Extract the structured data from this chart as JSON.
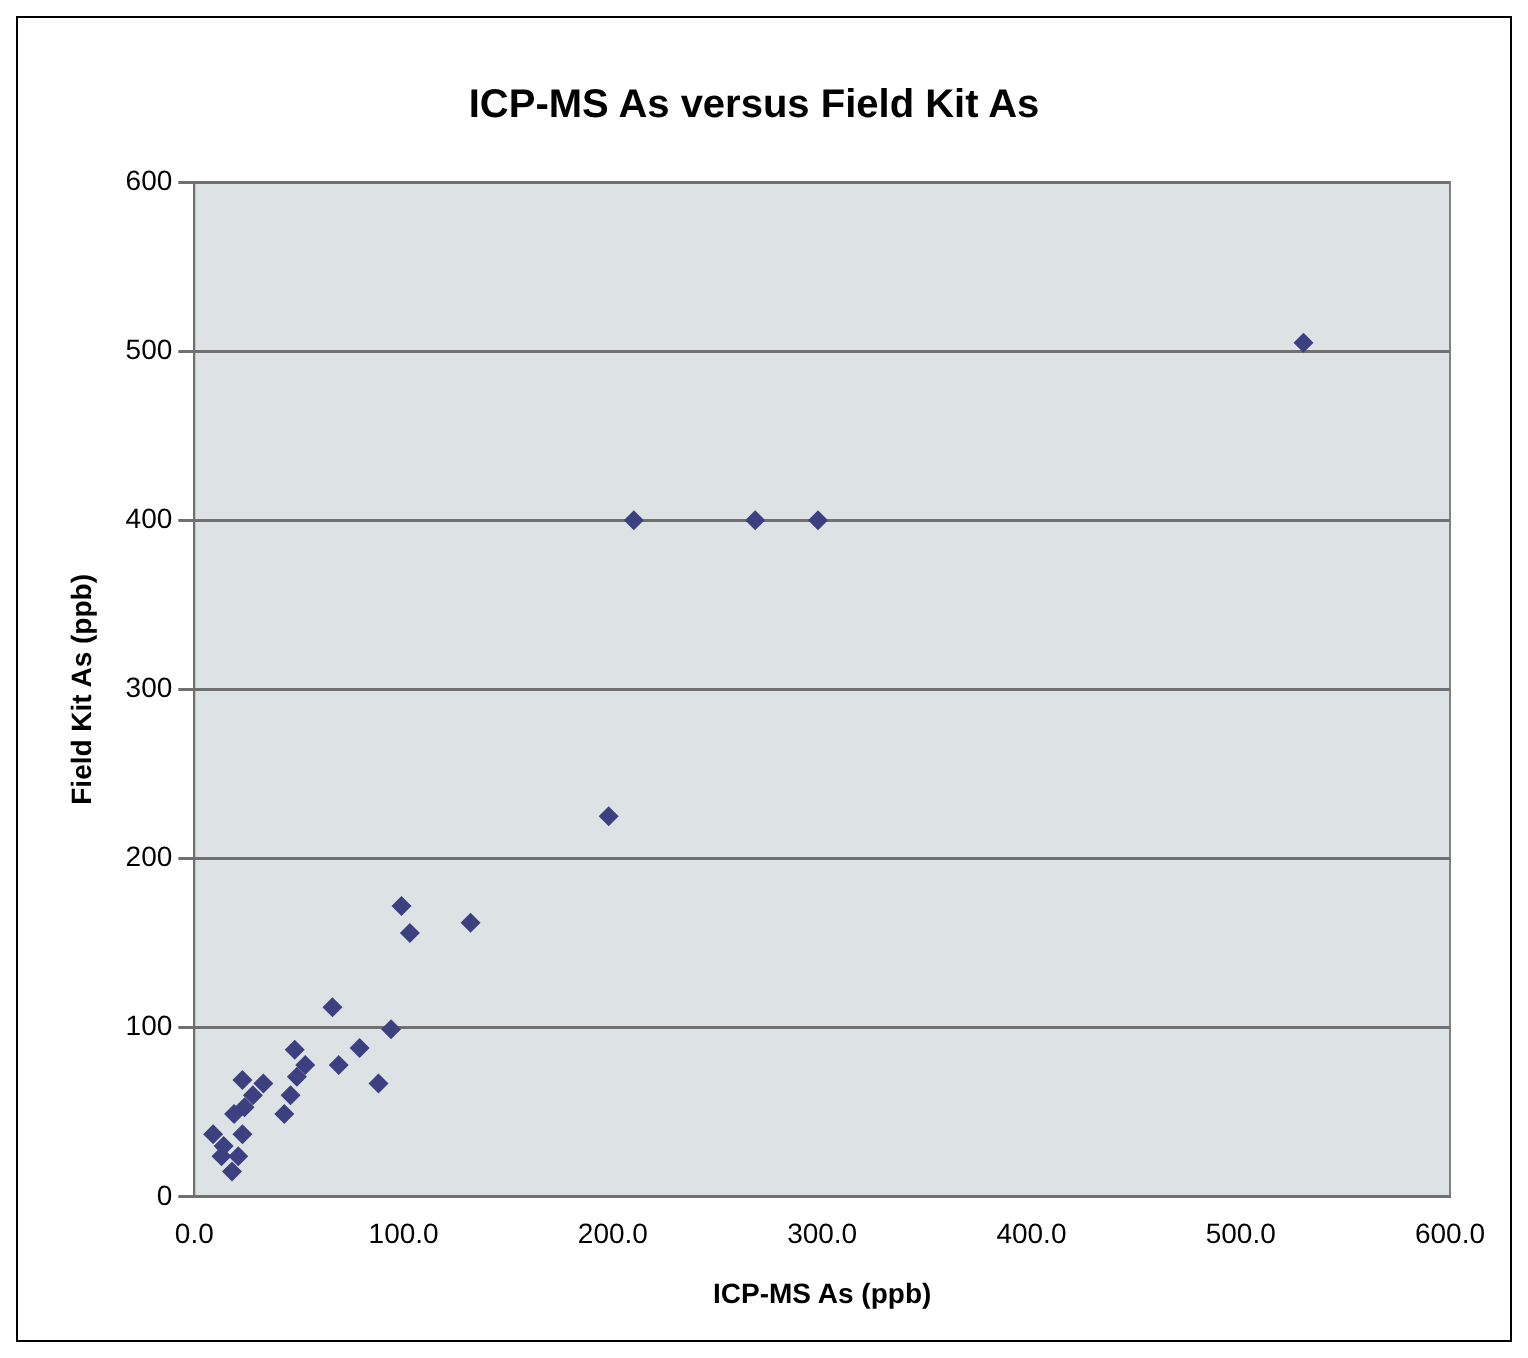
{
  "chart_data": {
    "type": "scatter",
    "title": "ICP-MS As versus Field Kit As",
    "xlabel": "ICP-MS As (ppb)",
    "ylabel": "Field Kit As (ppb)",
    "xlim": [
      0,
      600
    ],
    "xticks": [
      {
        "value": 0,
        "label": "0.0"
      },
      {
        "value": 100,
        "label": "100.0"
      },
      {
        "value": 200,
        "label": "200.0"
      },
      {
        "value": 300,
        "label": "300.0"
      },
      {
        "value": 400,
        "label": "400.0"
      },
      {
        "value": 500,
        "label": "500.0"
      },
      {
        "value": 600,
        "label": "600.0"
      }
    ],
    "ylim": [
      0,
      600
    ],
    "yticks": [
      0,
      100,
      200,
      300,
      400,
      500,
      600
    ],
    "grid": "y",
    "legend": false,
    "marker": "diamond",
    "series": [
      {
        "color": "#3d4080",
        "x": [
          530,
          210,
          268,
          298,
          198,
          99,
          103,
          132,
          66,
          94,
          79,
          69,
          88,
          48,
          53,
          49,
          46,
          43,
          23,
          33,
          28,
          24,
          19,
          9,
          14,
          13,
          18,
          21,
          23
        ],
        "values": [
          505,
          400,
          400,
          400,
          225,
          172,
          156,
          162,
          112,
          99,
          88,
          78,
          67,
          87,
          78,
          71,
          60,
          49,
          69,
          67,
          60,
          53,
          49,
          37,
          30,
          24,
          15,
          24,
          37
        ]
      }
    ]
  }
}
